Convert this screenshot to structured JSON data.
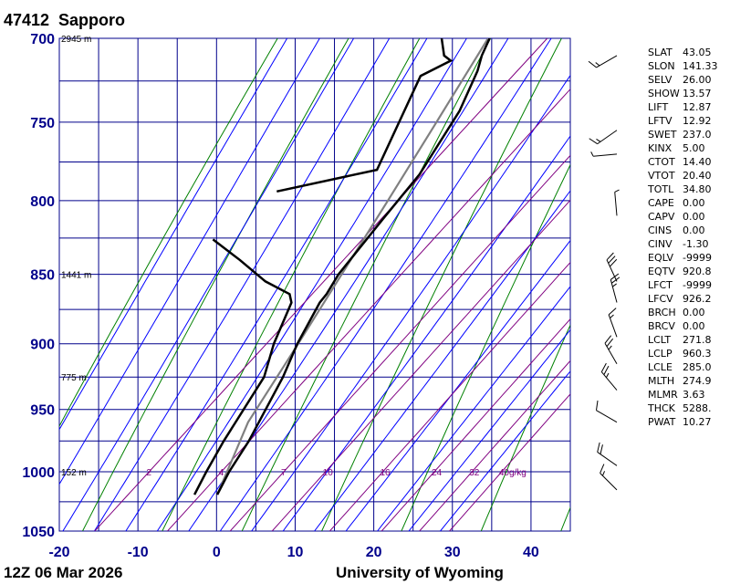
{
  "header": {
    "station_id": "47412",
    "station_name": "Sapporo"
  },
  "footer": {
    "timestamp": "12Z 06 Mar 2026",
    "source": "University of Wyoming"
  },
  "colors": {
    "axis_label": "#00008b",
    "grid": "#00008b",
    "dry_adiabat": "#008000",
    "moist_adiabat": "#0000ff",
    "mixing_ratio": "#800080",
    "parcel": "#808080",
    "profile": "#000000"
  },
  "chart_data": {
    "type": "skew-t",
    "xlim": [
      -20,
      45
    ],
    "ylim": [
      1050,
      700
    ],
    "y_scale": "log",
    "pressure_ticks": [
      700,
      750,
      800,
      850,
      900,
      950,
      1000,
      1050
    ],
    "temp_ticks": [
      -20,
      -10,
      0,
      10,
      20,
      30,
      40
    ],
    "height_labels": [
      {
        "p": 700,
        "text": "2945 m"
      },
      {
        "p": 850,
        "text": "1441 m"
      },
      {
        "p": 925,
        "text": "775 m"
      },
      {
        "p": 1000,
        "text": "152 m"
      }
    ],
    "mixing_ratio_labels": [
      {
        "w": 2,
        "text": "2"
      },
      {
        "w": 4,
        "text": "4"
      },
      {
        "w": 7,
        "text": "7"
      },
      {
        "w": 10,
        "text": "10"
      },
      {
        "w": 16,
        "text": "16"
      },
      {
        "w": 24,
        "text": "24"
      },
      {
        "w": 32,
        "text": "32"
      },
      {
        "w": 40,
        "text": "40g/kg"
      }
    ],
    "temperature_profile": [
      {
        "p": 1019,
        "t": 3.0
      },
      {
        "p": 1000,
        "t": 1.6
      },
      {
        "p": 975,
        "t": 0.2
      },
      {
        "p": 925,
        "t": -3.6
      },
      {
        "p": 900,
        "t": -6.0
      },
      {
        "p": 870,
        "t": -8.4
      },
      {
        "p": 864,
        "t": -8.6
      },
      {
        "p": 850,
        "t": -9.6
      },
      {
        "p": 812,
        "t": -11.0
      },
      {
        "p": 783,
        "t": -12.0
      },
      {
        "p": 743,
        "t": -15.0
      },
      {
        "p": 719,
        "t": -17.8
      },
      {
        "p": 710,
        "t": -19.2
      },
      {
        "p": 700,
        "t": -20.4
      }
    ],
    "dewpoint_profile": [
      {
        "p": 1019,
        "t": 0.1
      },
      {
        "p": 1000,
        "t": -1.3
      },
      {
        "p": 975,
        "t": -3.0
      },
      {
        "p": 925,
        "t": -6.0
      },
      {
        "p": 900,
        "t": -9.0
      },
      {
        "p": 870,
        "t": -12.0
      },
      {
        "p": 864,
        "t": -13.3
      },
      {
        "p": 855,
        "t": -18.0
      },
      {
        "p": 840,
        "t": -24.0
      },
      {
        "p": 826,
        "t": -30.0
      }
    ],
    "dewpoint_upper_profile": [
      {
        "p": 794,
        "t": -28.0
      },
      {
        "p": 780,
        "t": -18.0
      },
      {
        "p": 722,
        "t": -24.4
      },
      {
        "p": 713,
        "t": -22.5
      },
      {
        "p": 710,
        "t": -24.0
      },
      {
        "p": 700,
        "t": -26.5
      }
    ],
    "parcel_path": [
      {
        "p": 1019,
        "t": 3.0
      },
      {
        "p": 960,
        "t": -2.3
      },
      {
        "p": 900,
        "t": -5.9
      },
      {
        "p": 850,
        "t": -9.2
      },
      {
        "p": 800,
        "t": -12.7
      },
      {
        "p": 750,
        "t": -16.5
      },
      {
        "p": 700,
        "t": -20.6
      }
    ],
    "wind_barbs": [
      {
        "p": 1015,
        "dir": 315,
        "spd": 15
      },
      {
        "p": 995,
        "dir": 305,
        "spd": 20
      },
      {
        "p": 960,
        "dir": 300,
        "spd": 10
      },
      {
        "p": 935,
        "dir": 320,
        "spd": 25
      },
      {
        "p": 915,
        "dir": 330,
        "spd": 25
      },
      {
        "p": 895,
        "dir": 340,
        "spd": 15
      },
      {
        "p": 870,
        "dir": 345,
        "spd": 25
      },
      {
        "p": 855,
        "dir": 335,
        "spd": 30
      },
      {
        "p": 810,
        "dir": 355,
        "spd": 5
      },
      {
        "p": 770,
        "dir": 265,
        "spd": 5
      },
      {
        "p": 755,
        "dir": 235,
        "spd": 15
      },
      {
        "p": 710,
        "dir": 240,
        "spd": 15
      }
    ]
  },
  "indices": [
    {
      "key": "SLAT",
      "value": "43.05"
    },
    {
      "key": "SLON",
      "value": "141.33"
    },
    {
      "key": "SELV",
      "value": "26.00"
    },
    {
      "key": "SHOW",
      "value": "13.57"
    },
    {
      "key": "LIFT",
      "value": "12.87"
    },
    {
      "key": "LFTV",
      "value": "12.92"
    },
    {
      "key": "SWET",
      "value": "237.0"
    },
    {
      "key": "KINX",
      "value": "5.00"
    },
    {
      "key": "CTOT",
      "value": "14.40"
    },
    {
      "key": "VTOT",
      "value": "20.40"
    },
    {
      "key": "TOTL",
      "value": "34.80"
    },
    {
      "key": "CAPE",
      "value": "0.00"
    },
    {
      "key": "CAPV",
      "value": "0.00"
    },
    {
      "key": "CINS",
      "value": "0.00"
    },
    {
      "key": "CINV",
      "value": "-1.30"
    },
    {
      "key": "EQLV",
      "value": "-9999"
    },
    {
      "key": "EQTV",
      "value": "920.8"
    },
    {
      "key": "LFCT",
      "value": "-9999"
    },
    {
      "key": "LFCV",
      "value": "926.2"
    },
    {
      "key": "BRCH",
      "value": "0.00"
    },
    {
      "key": "BRCV",
      "value": "0.00"
    },
    {
      "key": "LCLT",
      "value": "271.8"
    },
    {
      "key": "LCLP",
      "value": "960.3"
    },
    {
      "key": "LCLE",
      "value": "285.0"
    },
    {
      "key": "MLTH",
      "value": "274.9"
    },
    {
      "key": "MLMR",
      "value": "3.63"
    },
    {
      "key": "THCK",
      "value": "5288."
    },
    {
      "key": "PWAT",
      "value": "10.27"
    }
  ]
}
